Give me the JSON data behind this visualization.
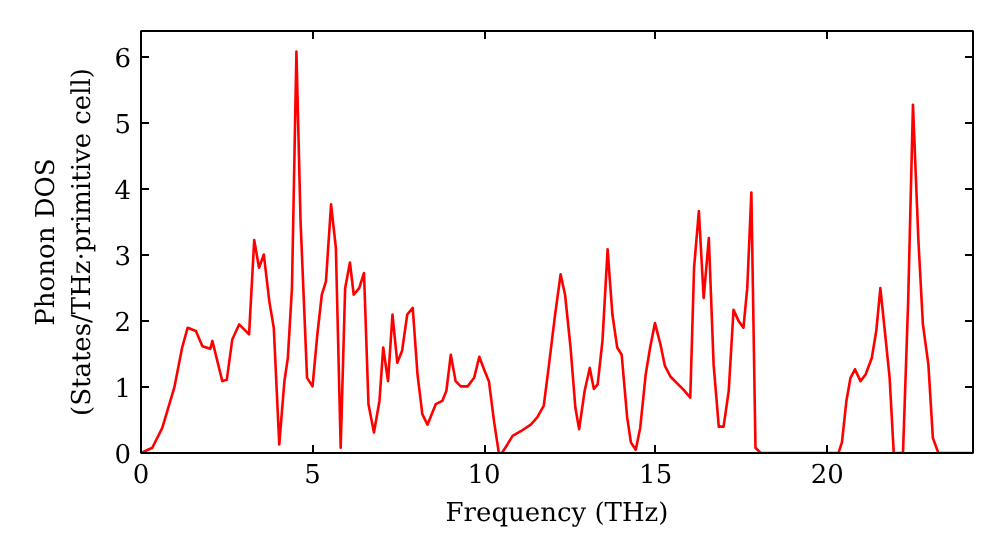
{
  "chart_data": {
    "type": "line",
    "xlabel": "Frequency (THz)",
    "ylabel": "Phonon DOS\n(States/THz·primitive cell)",
    "xlim": [
      0,
      24.25
    ],
    "ylim": [
      0,
      6.4
    ],
    "xticks": [
      0,
      5,
      10,
      15,
      20
    ],
    "yticks": [
      0,
      1,
      2,
      3,
      4,
      5,
      6
    ],
    "grid": false,
    "series": [
      {
        "color": "#ff0000",
        "x": [
          0,
          0.33,
          0.62,
          0.97,
          1.2,
          1.36,
          1.6,
          1.79,
          2.02,
          2.08,
          2.37,
          2.5,
          2.66,
          2.86,
          3.15,
          3.3,
          3.44,
          3.58,
          3.74,
          3.87,
          4.03,
          4.18,
          4.28,
          4.4,
          4.53,
          4.65,
          4.84,
          5.0,
          5.14,
          5.27,
          5.39,
          5.54,
          5.68,
          5.82,
          5.95,
          6.09,
          6.2,
          6.36,
          6.5,
          6.63,
          6.79,
          6.95,
          7.06,
          7.2,
          7.33,
          7.47,
          7.61,
          7.76,
          7.92,
          8.06,
          8.2,
          8.35,
          8.59,
          8.78,
          8.9,
          9.03,
          9.17,
          9.32,
          9.52,
          9.71,
          9.86,
          10.02,
          10.14,
          10.29,
          10.43,
          10.52,
          10.68,
          10.83,
          11.07,
          11.36,
          11.55,
          11.74,
          11.88,
          12.07,
          12.23,
          12.36,
          12.52,
          12.66,
          12.77,
          12.93,
          13.08,
          13.2,
          13.31,
          13.45,
          13.6,
          13.74,
          13.88,
          14.01,
          14.17,
          14.28,
          14.42,
          14.55,
          14.71,
          14.84,
          14.98,
          15.14,
          15.27,
          15.43,
          15.62,
          15.81,
          16.01,
          16.12,
          16.26,
          16.4,
          16.55,
          16.69,
          16.84,
          16.98,
          17.13,
          17.27,
          17.42,
          17.56,
          17.67,
          17.79,
          17.91,
          18.06,
          20.33,
          20.43,
          20.56,
          20.68,
          20.81,
          20.97,
          21.12,
          21.3,
          21.43,
          21.55,
          21.69,
          21.82,
          21.94,
          22.21,
          22.36,
          22.5,
          22.66,
          22.79,
          22.95,
          23.08,
          23.24,
          24.2
        ],
        "values": [
          0,
          0.08,
          0.38,
          0.99,
          1.6,
          1.9,
          1.85,
          1.62,
          1.58,
          1.7,
          1.09,
          1.11,
          1.72,
          1.95,
          1.8,
          3.23,
          2.81,
          3.01,
          2.3,
          1.9,
          0.13,
          1.09,
          1.44,
          2.5,
          6.09,
          3.52,
          1.14,
          1.01,
          1.8,
          2.4,
          2.6,
          3.77,
          3.11,
          0.08,
          2.5,
          2.89,
          2.4,
          2.5,
          2.73,
          0.74,
          0.31,
          0.79,
          1.6,
          1.09,
          2.1,
          1.37,
          1.55,
          2.1,
          2.2,
          1.19,
          0.59,
          0.43,
          0.74,
          0.79,
          0.94,
          1.49,
          1.09,
          1.01,
          1.01,
          1.14,
          1.46,
          1.24,
          1.09,
          0.48,
          0,
          0,
          0.13,
          0.26,
          0.33,
          0.43,
          0.54,
          0.72,
          1.29,
          2.1,
          2.71,
          2.4,
          1.6,
          0.69,
          0.36,
          0.94,
          1.29,
          0.97,
          1.04,
          1.7,
          3.09,
          2.1,
          1.6,
          1.49,
          0.54,
          0.16,
          0.05,
          0.38,
          1.19,
          1.6,
          1.97,
          1.65,
          1.32,
          1.16,
          1.06,
          0.96,
          0.84,
          2.81,
          3.67,
          2.35,
          3.26,
          1.34,
          0.4,
          0.4,
          0.94,
          2.17,
          2.0,
          1.9,
          2.5,
          3.95,
          0.08,
          0,
          0,
          0.16,
          0.79,
          1.14,
          1.27,
          1.09,
          1.19,
          1.44,
          1.85,
          2.5,
          1.8,
          1.14,
          0,
          0,
          2.3,
          5.28,
          3.21,
          1.95,
          1.34,
          0.23,
          0,
          0
        ]
      }
    ]
  }
}
